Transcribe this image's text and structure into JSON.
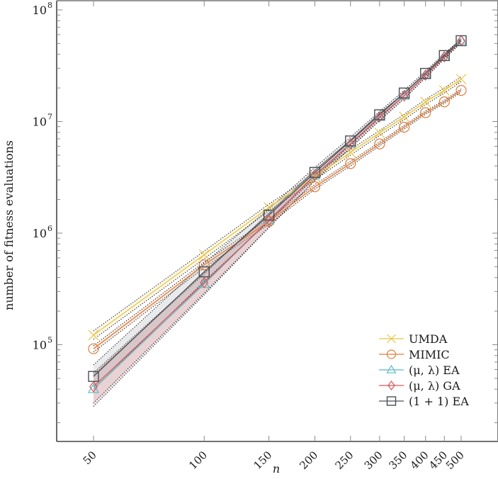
{
  "chart_data": {
    "type": "line",
    "title": "",
    "xlabel": "n",
    "ylabel": "number of fitness evaluations",
    "xscale": "log",
    "yscale": "log",
    "x": [
      50,
      100,
      150,
      200,
      250,
      300,
      350,
      400,
      450,
      500
    ],
    "xticks": [
      "50",
      "100",
      "150",
      "200",
      "250",
      "300",
      "350",
      "400",
      "450",
      "500"
    ],
    "yticks": [
      {
        "value": 100000,
        "base": "10",
        "exp": "5"
      },
      {
        "value": 1000000,
        "base": "10",
        "exp": "6"
      },
      {
        "value": 10000000,
        "base": "10",
        "exp": "7"
      },
      {
        "value": 100000000,
        "base": "10",
        "exp": "8"
      }
    ],
    "ylim": [
      15000,
      110000000
    ],
    "grid": false,
    "legend_position": "lower right",
    "series": [
      {
        "name": "UMDA",
        "color": "#e8c547",
        "marker": "x",
        "values": [
          122000,
          640000,
          1700000,
          3200000,
          5300000,
          7900000,
          11000000,
          15000000,
          19000000,
          24000000
        ],
        "band": {
          "lower": [
            112000,
            590000,
            1580000,
            3000000,
            5000000,
            7500000,
            10400000,
            14200000,
            18000000,
            22800000
          ],
          "upper": [
            133000,
            690000,
            1820000,
            3400000,
            5600000,
            8300000,
            11600000,
            15800000,
            20000000,
            25200000
          ]
        }
      },
      {
        "name": "MIMIC",
        "color": "#e07b39",
        "marker": "circle",
        "values": [
          92000,
          520000,
          1270000,
          2600000,
          4200000,
          6300000,
          8900000,
          12000000,
          15000000,
          19000000
        ],
        "band": {
          "lower": [
            86000,
            490000,
            1200000,
            2480000,
            4000000,
            6050000,
            8550000,
            11600000,
            14500000,
            18400000
          ],
          "upper": [
            98000,
            550000,
            1340000,
            2720000,
            4400000,
            6550000,
            9250000,
            12400000,
            15500000,
            19600000
          ]
        }
      },
      {
        "name": "(μ, λ) EA",
        "color": "#5bbcc4",
        "marker": "triangle",
        "values": [
          40000,
          350000,
          1300000,
          3300000,
          6300000,
          11000000,
          17000000,
          26000000,
          38000000,
          53000000
        ],
        "band": {
          "lower": [
            28000,
            280000,
            1120000,
            2950000,
            5800000,
            10200000,
            16000000,
            24700000,
            36300000,
            51000000
          ],
          "upper": [
            54000,
            430000,
            1500000,
            3650000,
            6800000,
            11800000,
            18000000,
            27300000,
            39700000,
            55000000
          ]
        }
      },
      {
        "name": "(μ, λ) GA",
        "color": "#d9545a",
        "marker": "diamond",
        "values": [
          42000,
          360000,
          1300000,
          3300000,
          6300000,
          11000000,
          17000000,
          26000000,
          38000000,
          53000000
        ],
        "band": {
          "lower": [
            30000,
            290000,
            1130000,
            2970000,
            5820000,
            10250000,
            16050000,
            24750000,
            36350000,
            51000000
          ],
          "upper": [
            56000,
            440000,
            1510000,
            3660000,
            6820000,
            11800000,
            18000000,
            27300000,
            39700000,
            55000000
          ]
        }
      },
      {
        "name": "(1 + 1) EA",
        "color": "#4a4f55",
        "marker": "square",
        "values": [
          52000,
          450000,
          1450000,
          3500000,
          6700000,
          11500000,
          18000000,
          27000000,
          39000000,
          53000000
        ],
        "band": {
          "lower": [
            40000,
            370000,
            1270000,
            3150000,
            6150000,
            10700000,
            17000000,
            25700000,
            37300000,
            51000000
          ],
          "upper": [
            66000,
            540000,
            1650000,
            3880000,
            7250000,
            12300000,
            19000000,
            28300000,
            40700000,
            55000000
          ]
        }
      }
    ]
  },
  "legend": {
    "items": [
      {
        "label": "UMDA"
      },
      {
        "label": "MIMIC"
      },
      {
        "label": "(μ, λ) EA"
      },
      {
        "label": "(μ, λ) GA"
      },
      {
        "label": "(1 + 1) EA"
      }
    ]
  },
  "axes": {
    "xlabel": "n",
    "ylabel": "number of fitness evaluations"
  }
}
